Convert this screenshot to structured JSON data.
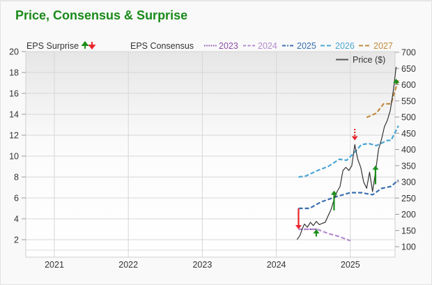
{
  "title": "Price, Consensus & Surprise",
  "colors": {
    "title": "#1a8a1a",
    "surprise_up": "#1a8f1a",
    "surprise_down": "#e8262a",
    "c2023": "#8a4fa8",
    "c2024": "#b38ad0",
    "c2025": "#3a6fb0",
    "c2026": "#4aa6d2",
    "c2027": "#c08a3e",
    "price": "#333333"
  },
  "legend": {
    "surprise_label": "EPS Surprise",
    "consensus_label": "EPS Consensus",
    "years": [
      "2023",
      "2024",
      "2025",
      "2026",
      "2027"
    ],
    "price_label": "Price ($)"
  },
  "chart_data": {
    "type": "line",
    "title": "Price, Consensus & Surprise",
    "x_ticks": [
      "2021",
      "2022",
      "2023",
      "2024",
      "2025"
    ],
    "y_left": {
      "label": "EPS",
      "ticks": [
        2,
        4,
        6,
        8,
        10,
        12,
        14,
        16,
        18,
        20
      ],
      "range": [
        0.3,
        20
      ]
    },
    "y_right": {
      "label": "Price ($)",
      "ticks": [
        100,
        150,
        200,
        250,
        300,
        350,
        400,
        450,
        500,
        550,
        600,
        650,
        700
      ],
      "range": [
        80,
        700
      ]
    },
    "grid": true,
    "legend_position": "top",
    "series": [
      {
        "name": "Price ($)",
        "axis": "right",
        "style": "solid",
        "points": [
          [
            2024.28,
            122
          ],
          [
            2024.32,
            135
          ],
          [
            2024.35,
            155
          ],
          [
            2024.38,
            170
          ],
          [
            2024.42,
            160
          ],
          [
            2024.46,
            175
          ],
          [
            2024.5,
            165
          ],
          [
            2024.54,
            178
          ],
          [
            2024.58,
            168
          ],
          [
            2024.62,
            172
          ],
          [
            2024.66,
            175
          ],
          [
            2024.7,
            195
          ],
          [
            2024.74,
            215
          ],
          [
            2024.78,
            245
          ],
          [
            2024.82,
            270
          ],
          [
            2024.86,
            285
          ],
          [
            2024.9,
            335
          ],
          [
            2024.94,
            345
          ],
          [
            2024.98,
            335
          ],
          [
            2025.02,
            350
          ],
          [
            2025.06,
            415
          ],
          [
            2025.1,
            370
          ],
          [
            2025.14,
            345
          ],
          [
            2025.18,
            300
          ],
          [
            2025.22,
            280
          ],
          [
            2025.26,
            330
          ],
          [
            2025.3,
            270
          ],
          [
            2025.34,
            330
          ],
          [
            2025.38,
            400
          ],
          [
            2025.42,
            430
          ],
          [
            2025.46,
            470
          ],
          [
            2025.5,
            490
          ],
          [
            2025.54,
            520
          ],
          [
            2025.58,
            580
          ],
          [
            2025.62,
            655
          ]
        ]
      },
      {
        "name": "2023",
        "axis": "left",
        "style": "dotted",
        "points": [
          [
            2024.3,
            3.0
          ],
          [
            2024.55,
            3.0
          ]
        ]
      },
      {
        "name": "2024",
        "axis": "left",
        "style": "dashed",
        "points": [
          [
            2024.3,
            3.0
          ],
          [
            2024.55,
            3.0
          ],
          [
            2024.7,
            2.6
          ],
          [
            2024.85,
            2.3
          ],
          [
            2025.0,
            1.9
          ]
        ]
      },
      {
        "name": "2025",
        "axis": "left",
        "style": "dashed",
        "points": [
          [
            2024.3,
            5.0
          ],
          [
            2024.45,
            5.0
          ],
          [
            2024.6,
            5.6
          ],
          [
            2024.8,
            6.1
          ],
          [
            2025.0,
            6.5
          ],
          [
            2025.15,
            6.5
          ],
          [
            2025.3,
            6.3
          ],
          [
            2025.42,
            6.9
          ],
          [
            2025.55,
            7.1
          ],
          [
            2025.65,
            7.7
          ]
        ]
      },
      {
        "name": "2026",
        "axis": "left",
        "style": "dashed",
        "points": [
          [
            2024.3,
            8.0
          ],
          [
            2024.4,
            8.1
          ],
          [
            2024.55,
            8.6
          ],
          [
            2024.7,
            9.0
          ],
          [
            2024.85,
            9.7
          ],
          [
            2024.95,
            9.6
          ],
          [
            2025.05,
            10.3
          ],
          [
            2025.15,
            11.1
          ],
          [
            2025.25,
            11.2
          ],
          [
            2025.35,
            11.0
          ],
          [
            2025.5,
            11.5
          ],
          [
            2025.55,
            11.5
          ],
          [
            2025.65,
            12.9
          ]
        ]
      },
      {
        "name": "2027",
        "axis": "left",
        "style": "dashed",
        "points": [
          [
            2025.22,
            13.7
          ],
          [
            2025.35,
            14.1
          ],
          [
            2025.45,
            15.0
          ],
          [
            2025.55,
            15.0
          ],
          [
            2025.65,
            17.3
          ]
        ]
      }
    ],
    "surprises": [
      {
        "x": 2024.3,
        "from": 5.0,
        "to": 3.0,
        "direction": "down"
      },
      {
        "x": 2024.54,
        "from": 2.3,
        "to": 3.0,
        "direction": "up"
      },
      {
        "x": 2024.78,
        "from": 4.8,
        "to": 6.7,
        "direction": "up"
      },
      {
        "x": 2025.06,
        "from": 12.6,
        "to": 11.5,
        "direction": "down",
        "style": "dotted"
      },
      {
        "x": 2025.34,
        "from": 7.3,
        "to": 9.1,
        "direction": "up"
      },
      {
        "x": 2025.62,
        "from": 16.9,
        "to": 17.4,
        "direction": "up"
      }
    ]
  }
}
